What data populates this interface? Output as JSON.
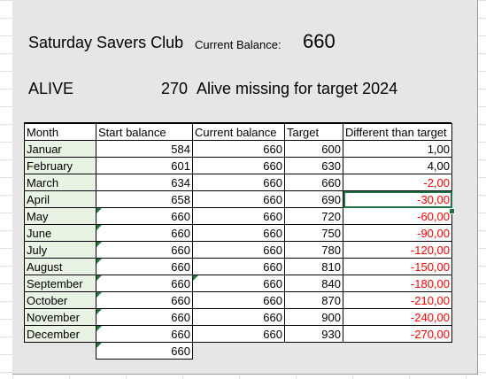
{
  "header": {
    "title": "Saturday Savers Club",
    "balance_label": "Current Balance:",
    "balance_value": "660",
    "alive_label": "ALIVE",
    "missing_value": "270",
    "missing_text": "Alive missing for target 2024"
  },
  "table": {
    "columns": [
      "Month",
      "Start balance",
      "Current balance",
      "Target",
      "Different than target"
    ],
    "rows": [
      {
        "month": "Januar",
        "start": "584",
        "current": "660",
        "target": "600",
        "diff": "1,00",
        "neg": false
      },
      {
        "month": "February",
        "start": "601",
        "current": "660",
        "target": "630",
        "diff": "4,00",
        "neg": false
      },
      {
        "month": "March",
        "start": "634",
        "current": "660",
        "target": "660",
        "diff": "-2,00",
        "neg": true
      },
      {
        "month": "April",
        "start": "658",
        "current": "660",
        "target": "690",
        "diff": "-30,00",
        "neg": true
      },
      {
        "month": "May",
        "start": "660",
        "current": "660",
        "target": "720",
        "diff": "-60,00",
        "neg": true
      },
      {
        "month": "June",
        "start": "660",
        "current": "660",
        "target": "750",
        "diff": "-90,00",
        "neg": true
      },
      {
        "month": "July",
        "start": "660",
        "current": "660",
        "target": "780",
        "diff": "-120,00",
        "neg": true
      },
      {
        "month": "August",
        "start": "660",
        "current": "660",
        "target": "810",
        "diff": "-150,00",
        "neg": true
      },
      {
        "month": "September",
        "start": "660",
        "current": "660",
        "target": "840",
        "diff": "-180,00",
        "neg": true
      },
      {
        "month": "October",
        "start": "660",
        "current": "660",
        "target": "870",
        "diff": "-210,00",
        "neg": true
      },
      {
        "month": "November",
        "start": "660",
        "current": "660",
        "target": "900",
        "diff": "-240,00",
        "neg": true
      },
      {
        "month": "December",
        "start": "660",
        "current": "660",
        "target": "930",
        "diff": "-270,00",
        "neg": true
      }
    ],
    "extra_start": "660"
  },
  "colors": {
    "negative": "#ff0000",
    "selection": "#217346",
    "indicator": "#1f7a3a"
  }
}
